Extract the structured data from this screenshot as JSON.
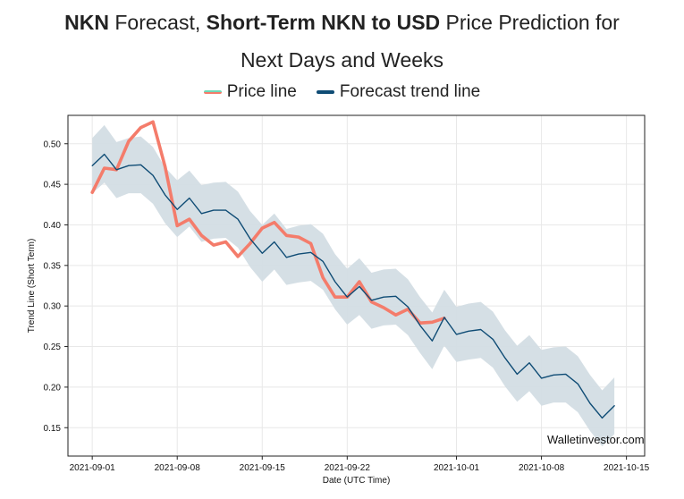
{
  "header": {
    "title_part1_bold": "NKN",
    "title_part2": " Forecast, ",
    "title_part3_bold": "Short-Term NKN to USD",
    "title_part4": " Price Prediction for",
    "title_line2": "Next Days and Weeks"
  },
  "legend": {
    "price_label": "Price line",
    "forecast_label": "Forecast trend line",
    "price_swatch_colors": [
      "#f47c6b",
      "#6fd8b8"
    ],
    "forecast_color": "#0f4c75"
  },
  "watermark": "Walletinvestor.com",
  "chart_data": {
    "type": "line",
    "xlabel": "Date (UTC Time)",
    "ylabel": "Trend Line (Short Term)",
    "x_tick_labels": [
      "2021-09-01",
      "2021-09-08",
      "2021-09-15",
      "2021-09-22",
      "2021-10-01",
      "2021-10-08",
      "2021-10-15"
    ],
    "x_tick_days": [
      0,
      7,
      14,
      21,
      30,
      37,
      44
    ],
    "xlim_days": [
      -2,
      45.5
    ],
    "ylim": [
      0.115,
      0.535
    ],
    "y_ticks": [
      0.15,
      0.2,
      0.25,
      0.3,
      0.35,
      0.4,
      0.45,
      0.5
    ],
    "y_tick_labels": [
      "0.15",
      "0.20",
      "0.25",
      "0.30",
      "0.35",
      "0.40",
      "0.45",
      "0.50"
    ],
    "grid": true,
    "series": [
      {
        "name": "Forecast trend line",
        "color": "#0f4c75",
        "x": [
          0,
          1,
          2,
          3,
          4,
          5,
          6,
          7,
          8,
          9,
          10,
          11,
          12,
          13,
          14,
          15,
          16,
          17,
          18,
          19,
          20,
          21,
          22,
          23,
          24,
          25,
          26,
          27,
          28,
          29,
          30,
          31,
          32,
          33,
          34,
          35,
          36,
          37,
          38,
          39,
          40,
          41,
          42,
          43
        ],
        "values": [
          0.473,
          0.487,
          0.468,
          0.473,
          0.474,
          0.461,
          0.437,
          0.419,
          0.433,
          0.414,
          0.418,
          0.418,
          0.407,
          0.383,
          0.365,
          0.379,
          0.36,
          0.364,
          0.366,
          0.355,
          0.33,
          0.311,
          0.324,
          0.307,
          0.311,
          0.312,
          0.299,
          0.276,
          0.257,
          0.286,
          0.265,
          0.269,
          0.271,
          0.259,
          0.236,
          0.216,
          0.23,
          0.211,
          0.215,
          0.216,
          0.204,
          0.18,
          0.162,
          0.177
        ]
      },
      {
        "name": "Forecast upper band",
        "color": "#d3dde4",
        "x": [
          0,
          1,
          2,
          3,
          4,
          5,
          6,
          7,
          8,
          9,
          10,
          11,
          12,
          13,
          14,
          15,
          16,
          17,
          18,
          19,
          20,
          21,
          22,
          23,
          24,
          25,
          26,
          27,
          28,
          29,
          30,
          31,
          32,
          33,
          34,
          35,
          36,
          37,
          38,
          39,
          40,
          41,
          42,
          43
        ],
        "values": [
          0.507,
          0.523,
          0.502,
          0.507,
          0.509,
          0.496,
          0.471,
          0.455,
          0.467,
          0.449,
          0.452,
          0.453,
          0.441,
          0.417,
          0.4,
          0.414,
          0.395,
          0.399,
          0.401,
          0.389,
          0.364,
          0.346,
          0.359,
          0.341,
          0.345,
          0.346,
          0.333,
          0.311,
          0.292,
          0.32,
          0.299,
          0.303,
          0.305,
          0.293,
          0.27,
          0.251,
          0.264,
          0.246,
          0.249,
          0.25,
          0.238,
          0.215,
          0.196,
          0.212
        ]
      },
      {
        "name": "Forecast lower band",
        "color": "#d3dde4",
        "x": [
          0,
          1,
          2,
          3,
          4,
          5,
          6,
          7,
          8,
          9,
          10,
          11,
          12,
          13,
          14,
          15,
          16,
          17,
          18,
          19,
          20,
          21,
          22,
          23,
          24,
          25,
          26,
          27,
          28,
          29,
          30,
          31,
          32,
          33,
          34,
          35,
          36,
          37,
          38,
          39,
          40,
          41,
          42,
          43
        ],
        "values": [
          0.439,
          0.452,
          0.433,
          0.439,
          0.439,
          0.426,
          0.402,
          0.385,
          0.398,
          0.379,
          0.383,
          0.384,
          0.372,
          0.348,
          0.33,
          0.345,
          0.326,
          0.329,
          0.331,
          0.32,
          0.296,
          0.277,
          0.289,
          0.272,
          0.276,
          0.277,
          0.264,
          0.242,
          0.222,
          0.251,
          0.231,
          0.234,
          0.236,
          0.224,
          0.201,
          0.182,
          0.195,
          0.177,
          0.181,
          0.181,
          0.169,
          0.146,
          0.127,
          0.142
        ]
      },
      {
        "name": "Price line",
        "color": "#f47c6b",
        "x": [
          0,
          1,
          2,
          3,
          4,
          5,
          6,
          7,
          8,
          9,
          10,
          11,
          12,
          13,
          14,
          15,
          16,
          17,
          18,
          19,
          20,
          21,
          22,
          23,
          24,
          25,
          26,
          27,
          28,
          29,
          30
        ],
        "values": [
          0.44,
          0.47,
          0.468,
          0.503,
          0.52,
          0.527,
          0.472,
          0.399,
          0.407,
          0.387,
          0.375,
          0.379,
          0.361,
          0.377,
          0.396,
          0.403,
          0.387,
          0.385,
          0.377,
          0.335,
          0.311,
          0.311,
          0.33,
          0.305,
          0.298,
          0.289,
          0.296,
          0.279,
          0.28,
          0.285,
          null
        ]
      }
    ]
  }
}
